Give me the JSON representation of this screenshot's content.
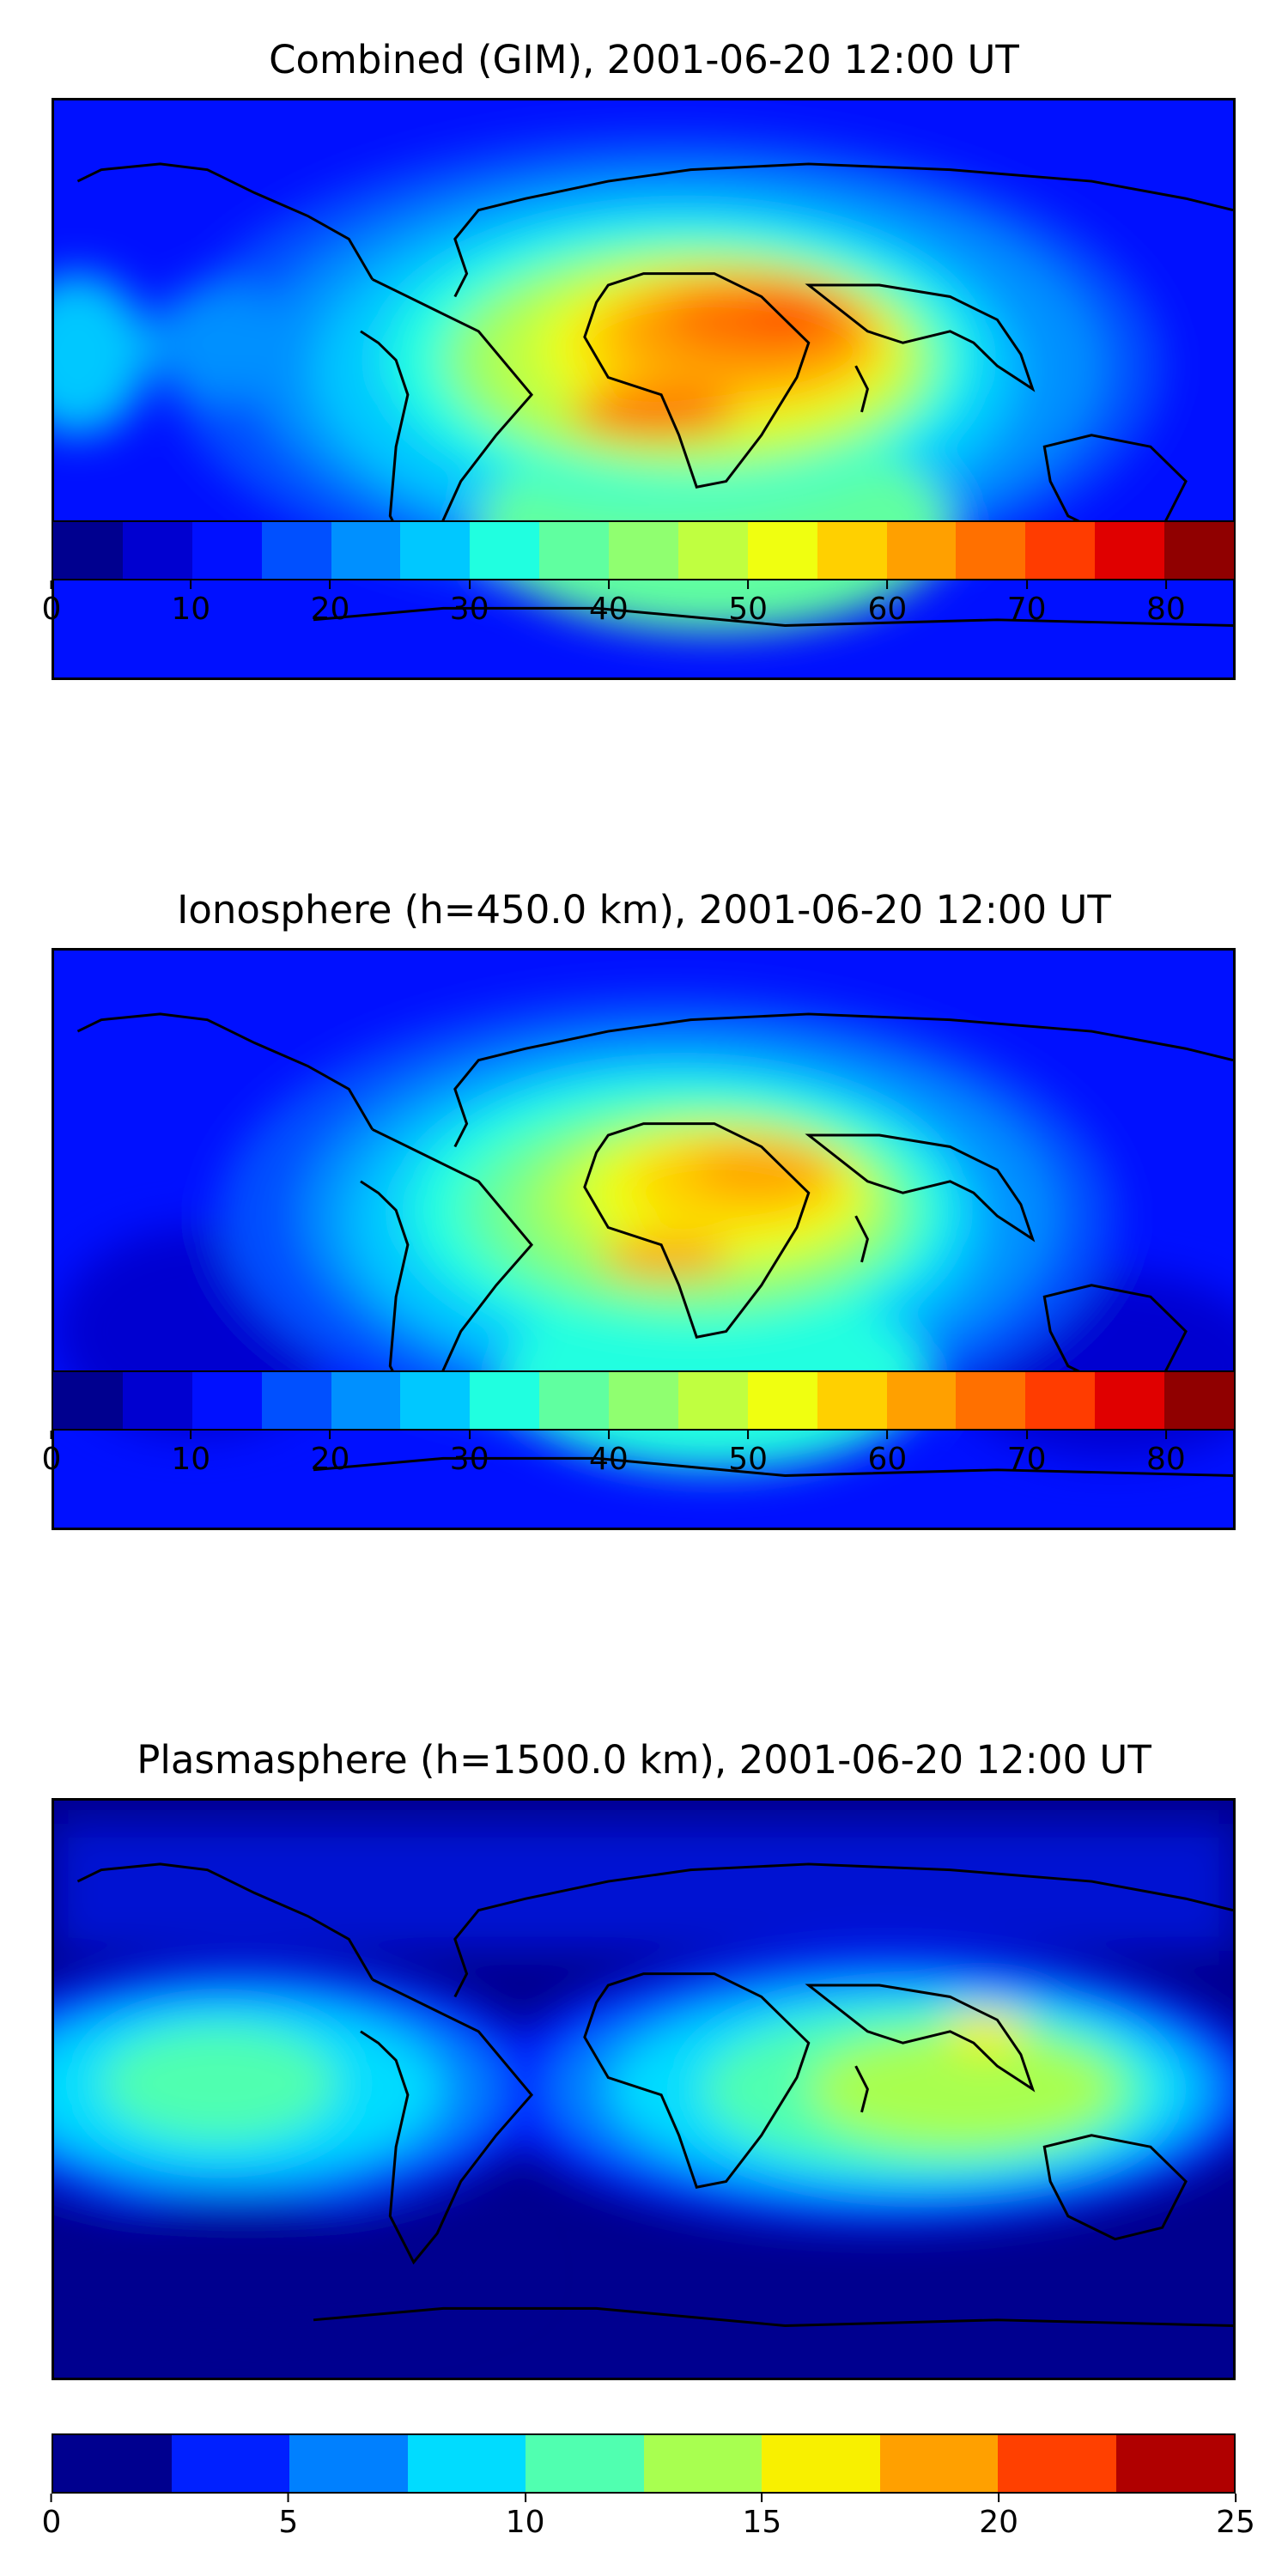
{
  "panels": [
    {
      "title": "Combined (GIM), 2001-06-20 12:00 UT",
      "colorbar": {
        "levels": [
          0,
          5,
          10,
          15,
          20,
          25,
          30,
          35,
          40,
          45,
          50,
          55,
          60,
          65,
          70,
          75,
          80,
          85
        ],
        "tick_labels": [
          "0",
          "10",
          "20",
          "30",
          "40",
          "50",
          "60",
          "70",
          "80"
        ],
        "tick_values": [
          0,
          10,
          20,
          30,
          40,
          50,
          60,
          70,
          80
        ],
        "colors": [
          "#00008f",
          "#0000d0",
          "#0010ff",
          "#0050ff",
          "#0090ff",
          "#00c8ff",
          "#20ffe0",
          "#60ffa0",
          "#90ff70",
          "#c0ff40",
          "#f0ff10",
          "#ffd000",
          "#ffa000",
          "#ff7000",
          "#ff3c00",
          "#e00000",
          "#900000"
        ]
      }
    },
    {
      "title": "Ionosphere  (h=450.0 km), 2001-06-20 12:00 UT",
      "colorbar": {
        "levels": [
          0,
          5,
          10,
          15,
          20,
          25,
          30,
          35,
          40,
          45,
          50,
          55,
          60,
          65,
          70,
          75,
          80,
          85
        ],
        "tick_labels": [
          "0",
          "10",
          "20",
          "30",
          "40",
          "50",
          "60",
          "70",
          "80"
        ],
        "tick_values": [
          0,
          10,
          20,
          30,
          40,
          50,
          60,
          70,
          80
        ],
        "colors": [
          "#00008f",
          "#0000d0",
          "#0010ff",
          "#0050ff",
          "#0090ff",
          "#00c8ff",
          "#20ffe0",
          "#60ffa0",
          "#90ff70",
          "#c0ff40",
          "#f0ff10",
          "#ffd000",
          "#ffa000",
          "#ff7000",
          "#ff3c00",
          "#e00000",
          "#900000"
        ]
      }
    },
    {
      "title": "Plasmasphere (h=1500.0 km), 2001-06-20 12:00 UT",
      "colorbar": {
        "levels": [
          0,
          2.5,
          5,
          7.5,
          10,
          12.5,
          15,
          17.5,
          20,
          22.5,
          25
        ],
        "tick_labels": [
          "0",
          "5",
          "10",
          "15",
          "20",
          "25"
        ],
        "tick_values": [
          0,
          5,
          10,
          15,
          20,
          25
        ],
        "colors": [
          "#00008f",
          "#0020ff",
          "#0080ff",
          "#00dcff",
          "#50ffb0",
          "#a8ff50",
          "#f8f000",
          "#ffa000",
          "#ff4000",
          "#b00000"
        ]
      }
    }
  ]
}
